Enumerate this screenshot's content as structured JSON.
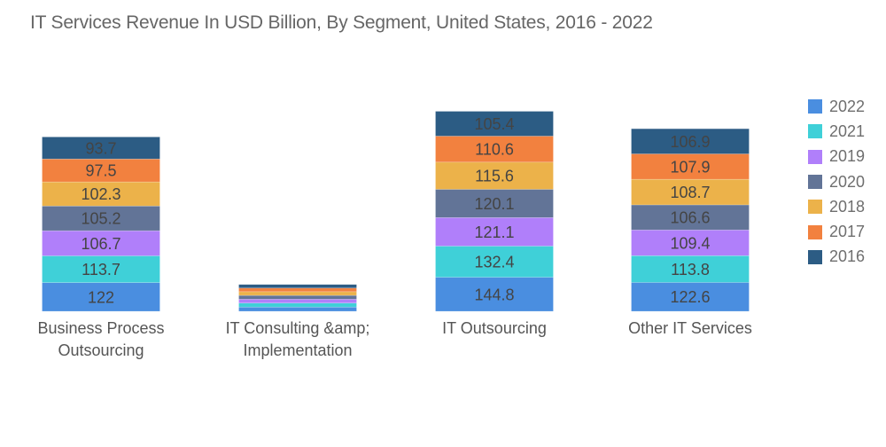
{
  "chart_data": {
    "type": "bar",
    "stacked": true,
    "title": "IT Services Revenue In USD Billion, By Segment, United States, 2016 - 2022",
    "xlabel": "",
    "ylabel": "",
    "grid": false,
    "legend_position": "right",
    "categories": [
      "Business Process Outsourcing",
      "IT Consulting &amp; Implementation",
      "IT Outsourcing",
      "Other IT Services"
    ],
    "category_lines": [
      [
        "Business Process",
        "Outsourcing"
      ],
      [
        "IT Consulting &amp;",
        "Implementation"
      ],
      [
        "IT Outsourcing"
      ],
      [
        "Other IT Services"
      ]
    ],
    "stack_order_bottom_to_top": [
      "2022",
      "2021",
      "2019",
      "2020",
      "2018",
      "2017",
      "2016"
    ],
    "series": [
      {
        "name": "2022",
        "color": "#4a8ee0",
        "values": [
          122,
          18,
          144.8,
          122.6
        ],
        "labels_shown": [
          true,
          false,
          true,
          true
        ]
      },
      {
        "name": "2021",
        "color": "#3fd0d8",
        "values": [
          113.7,
          17,
          132.4,
          113.8
        ],
        "labels_shown": [
          true,
          false,
          true,
          true
        ]
      },
      {
        "name": "2019",
        "color": "#b07ffa",
        "values": [
          106.7,
          16.5,
          121.1,
          109.4
        ],
        "labels_shown": [
          true,
          false,
          true,
          true
        ]
      },
      {
        "name": "2020",
        "color": "#627497",
        "values": [
          105.2,
          16,
          120.1,
          106.6
        ],
        "labels_shown": [
          true,
          false,
          true,
          true
        ]
      },
      {
        "name": "2018",
        "color": "#ecb24a",
        "values": [
          102.3,
          16,
          115.6,
          108.7
        ],
        "labels_shown": [
          true,
          false,
          true,
          true
        ]
      },
      {
        "name": "2017",
        "color": "#f2813f",
        "values": [
          97.5,
          15.5,
          110.6,
          107.9
        ],
        "labels_shown": [
          true,
          false,
          true,
          true
        ]
      },
      {
        "name": "2016",
        "color": "#2c5c84",
        "values": [
          93.7,
          15,
          105.4,
          106.9
        ],
        "labels_shown": [
          true,
          false,
          true,
          true
        ]
      }
    ],
    "legend": [
      "2022",
      "2021",
      "2019",
      "2020",
      "2018",
      "2017",
      "2016"
    ],
    "label_color": "#444444"
  }
}
